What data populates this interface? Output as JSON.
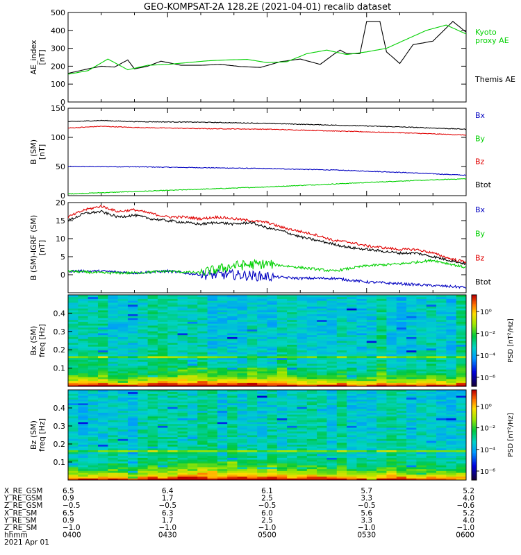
{
  "title": "GEO-KOMPSAT-2A 128.2E (2021-04-01) recalib dataset",
  "colors": {
    "black": "#000000",
    "red": "#e00000",
    "green": "#00d000",
    "blue": "#0000c0"
  },
  "chart_data": [
    {
      "type": "line",
      "panel": "ae",
      "ylabel": [
        "AE_index",
        "[nT]"
      ],
      "ylim": [
        0,
        500
      ],
      "yticks": [
        0,
        100,
        200,
        300,
        400,
        500
      ],
      "xlim": [
        0,
        120
      ],
      "series": [
        {
          "name": "Themis AE",
          "color": "#000000",
          "x": [
            0,
            6,
            10,
            14,
            18,
            20,
            24,
            28,
            34,
            40,
            46,
            52,
            58,
            64,
            70,
            76,
            80,
            82,
            84,
            88,
            90,
            94,
            96,
            100,
            104,
            110,
            116,
            120
          ],
          "y": [
            160,
            185,
            200,
            195,
            235,
            185,
            200,
            228,
            205,
            205,
            210,
            198,
            193,
            225,
            240,
            210,
            265,
            290,
            270,
            270,
            450,
            450,
            280,
            215,
            320,
            340,
            450,
            390
          ]
        },
        {
          "name": "Kyoto proxy AE",
          "color": "#00d000",
          "x": [
            0,
            6,
            12,
            18,
            24,
            30,
            36,
            42,
            48,
            54,
            60,
            66,
            72,
            78,
            84,
            90,
            96,
            102,
            108,
            114,
            120
          ],
          "y": [
            155,
            175,
            240,
            180,
            205,
            210,
            220,
            230,
            235,
            238,
            220,
            225,
            270,
            290,
            265,
            280,
            300,
            350,
            400,
            430,
            380
          ]
        }
      ],
      "legend": [
        {
          "label": "Kyoto",
          "color": "#00d000"
        },
        {
          "label": "proxy AE",
          "color": "#00d000"
        },
        {
          "label": "Themis AE",
          "color": "#000000"
        }
      ]
    },
    {
      "type": "line",
      "panel": "b_sm",
      "ylabel": [
        "B (SM)",
        "[nT]"
      ],
      "ylim": [
        0,
        150
      ],
      "yticks": [
        0,
        50,
        100,
        150
      ],
      "xlim": [
        0,
        120
      ],
      "series": [
        {
          "name": "Bx",
          "color": "#0000c0",
          "x": [
            0,
            20,
            40,
            60,
            80,
            100,
            120
          ],
          "y": [
            50,
            49.5,
            48,
            46.5,
            44,
            40,
            35
          ]
        },
        {
          "name": "By",
          "color": "#00d000",
          "x": [
            0,
            20,
            40,
            60,
            80,
            100,
            120
          ],
          "y": [
            3,
            7,
            11,
            15,
            20,
            25,
            29
          ]
        },
        {
          "name": "Bz",
          "color": "#e00000",
          "x": [
            0,
            10,
            20,
            40,
            60,
            80,
            100,
            120
          ],
          "y": [
            116,
            119,
            117,
            115,
            114,
            111,
            108,
            104
          ]
        },
        {
          "name": "Btot",
          "color": "#000000",
          "x": [
            0,
            10,
            20,
            40,
            60,
            80,
            100,
            120
          ],
          "y": [
            127,
            129,
            127,
            126,
            124,
            121,
            118,
            114
          ]
        }
      ],
      "legend": [
        {
          "label": "Bx",
          "color": "#0000c0"
        },
        {
          "label": "By",
          "color": "#00d000"
        },
        {
          "label": "Bz",
          "color": "#e00000"
        },
        {
          "label": "Btot",
          "color": "#000000"
        }
      ]
    },
    {
      "type": "line",
      "panel": "b_minus_igrf",
      "ylabel": [
        "B (SM)-IGRF (SM)",
        "[nT]"
      ],
      "ylim": [
        -5,
        20
      ],
      "yticks": [
        0,
        5,
        10,
        15,
        20
      ],
      "xlim": [
        0,
        120
      ],
      "series": [
        {
          "name": "Bx",
          "color": "#0000c0",
          "x": [
            0,
            10,
            20,
            30,
            40,
            50,
            60,
            70,
            80,
            90,
            100,
            110,
            120
          ],
          "y": [
            1,
            1,
            0.5,
            1,
            0,
            0,
            -0.5,
            -1,
            -1,
            -2,
            -2.5,
            -3,
            -3.5
          ]
        },
        {
          "name": "By",
          "color": "#00d000",
          "x": [
            0,
            10,
            20,
            30,
            40,
            50,
            60,
            70,
            80,
            90,
            100,
            110,
            120
          ],
          "y": [
            1,
            0.5,
            0.5,
            1,
            0.5,
            2.5,
            3,
            2,
            1,
            2.5,
            3,
            4,
            2
          ]
        },
        {
          "name": "Bz",
          "color": "#e00000",
          "x": [
            0,
            5,
            10,
            15,
            20,
            25,
            30,
            35,
            40,
            45,
            50,
            55,
            60,
            65,
            70,
            75,
            80,
            85,
            90,
            95,
            100,
            105,
            110,
            115,
            120
          ],
          "y": [
            16,
            18,
            19,
            17.5,
            18,
            17,
            16,
            16,
            15.5,
            16,
            15.5,
            15,
            14.5,
            13,
            12,
            11,
            9.5,
            9,
            8,
            7.5,
            7,
            7,
            6,
            4.5,
            3.5
          ]
        },
        {
          "name": "Btot",
          "color": "#000000",
          "x": [
            0,
            5,
            10,
            15,
            20,
            25,
            30,
            35,
            40,
            45,
            50,
            55,
            60,
            65,
            70,
            75,
            80,
            85,
            90,
            95,
            100,
            105,
            110,
            115,
            120
          ],
          "y": [
            15,
            17,
            17.5,
            16,
            16.5,
            15.5,
            15,
            14.5,
            14,
            14.5,
            14,
            14.5,
            13,
            12,
            10.5,
            9.5,
            8.5,
            7.5,
            7,
            6.5,
            6,
            6,
            5,
            4,
            3
          ]
        }
      ],
      "legend": [
        {
          "label": "Bx",
          "color": "#0000c0"
        },
        {
          "label": "By",
          "color": "#00d000"
        },
        {
          "label": "Bz",
          "color": "#e00000"
        },
        {
          "label": "Btot",
          "color": "#000000"
        }
      ]
    },
    {
      "type": "heatmap",
      "panel": "spec_bx",
      "ylabel": [
        "Bx (SM)",
        "freq [Hz]"
      ],
      "ylim": [
        0,
        0.5
      ],
      "yticks": [
        "0.1",
        "0.2",
        "0.3",
        "0.4"
      ],
      "yticks_values": [
        0.1,
        0.2,
        0.3,
        0.4
      ],
      "xlim": [
        0,
        120
      ],
      "colorbar": {
        "label": "PSD [nT²/Hz]",
        "ticks": [
          "10⁰",
          "10⁻²",
          "10⁻⁴",
          "10⁻⁶"
        ]
      }
    },
    {
      "type": "heatmap",
      "panel": "spec_bz",
      "ylabel": [
        "Bz (SM)",
        "freq [Hz]"
      ],
      "ylim": [
        0,
        0.5
      ],
      "yticks": [
        "0.1",
        "0.2",
        "0.3",
        "0.4"
      ],
      "yticks_values": [
        0.1,
        0.2,
        0.3,
        0.4
      ],
      "xlim": [
        0,
        120
      ],
      "colorbar": {
        "label": "PSD [nT²/Hz]",
        "ticks": [
          "10⁰",
          "10⁻²",
          "10⁻⁴",
          "10⁻⁶"
        ]
      }
    }
  ],
  "ephemeris": {
    "labels": [
      "X_RE_GSM",
      "Y_RE_GSM",
      "Z_RE_GSM",
      "X_RE_SM",
      "Y_RE_SM",
      "Z_RE_SM",
      "hhmm",
      "2021 Apr 01"
    ],
    "columns": [
      [
        "6.5",
        "0.9",
        "−0.5",
        "6.5",
        "0.9",
        "−1.0",
        "0400"
      ],
      [
        "6.4",
        "1.7",
        "−0.5",
        "6.3",
        "1.7",
        "−1.0",
        "0430"
      ],
      [
        "6.1",
        "2.5",
        "−0.5",
        "6.0",
        "2.5",
        "−1.0",
        "0500"
      ],
      [
        "5.7",
        "3.3",
        "−0.5",
        "5.6",
        "3.3",
        "−1.0",
        "0530"
      ],
      [
        "5.2",
        "4.0",
        "−0.6",
        "5.2",
        "4.0",
        "−1.0",
        "0600"
      ]
    ]
  }
}
